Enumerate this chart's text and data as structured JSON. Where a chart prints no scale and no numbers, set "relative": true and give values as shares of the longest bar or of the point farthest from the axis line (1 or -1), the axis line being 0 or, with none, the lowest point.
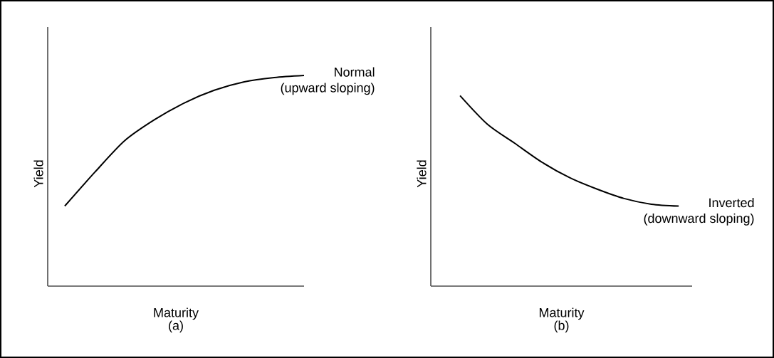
{
  "chart_data": [
    {
      "type": "line",
      "title": "(a)",
      "xlabel": "Maturity",
      "ylabel": "Yield",
      "relative": true,
      "categories": [
        null,
        null,
        null,
        null,
        null,
        null,
        null,
        null,
        null
      ],
      "series": [
        {
          "color": "#000000",
          "values": [
            0.38,
            0.54,
            0.69,
            0.79,
            0.87,
            0.93,
            0.97,
            0.99,
            1
          ]
        }
      ],
      "annotations": [
        "Normal",
        "(upward sloping)"
      ]
    },
    {
      "type": "line",
      "title": "(b)",
      "xlabel": "Maturity",
      "ylabel": "Yield",
      "relative": true,
      "categories": [
        null,
        null,
        null,
        null,
        null,
        null,
        null,
        null,
        null
      ],
      "series": [
        {
          "color": "#000000",
          "values": [
            1,
            0.85,
            0.75,
            0.65,
            0.57,
            0.51,
            0.46,
            0.43,
            0.42
          ]
        }
      ],
      "annotations": [
        "Inverted",
        "(downward sloping)"
      ]
    }
  ]
}
